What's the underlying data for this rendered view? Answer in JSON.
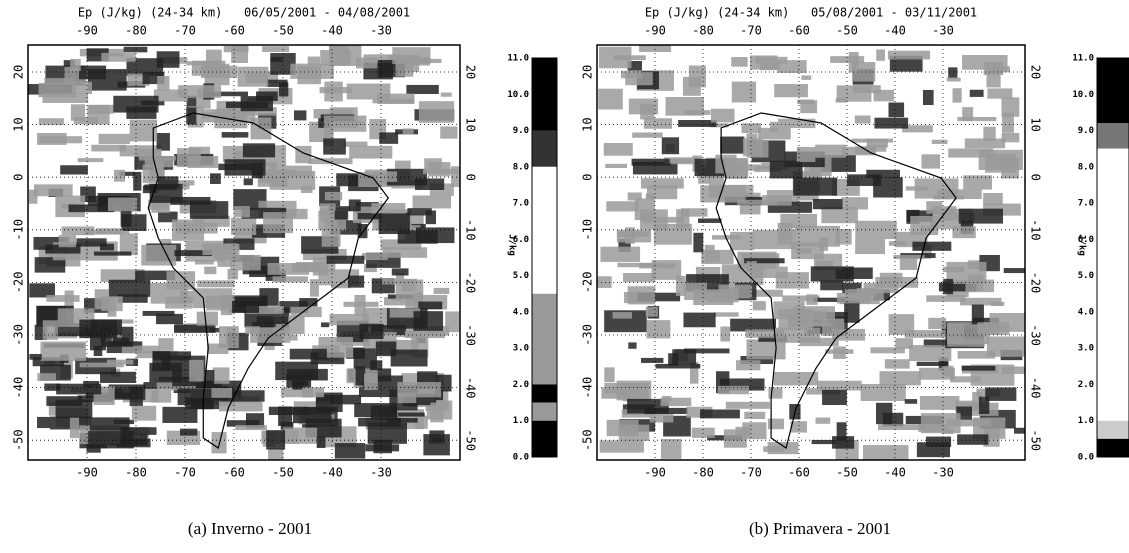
{
  "panels": [
    {
      "title": "Ep (J/kg) (24-34 km)   06/05/2001 - 04/08/2001",
      "lon_ticks": [
        "-90",
        "-80",
        "-70",
        "-60",
        "-50",
        "-40",
        "-30"
      ],
      "lat_ticks": [
        "20",
        "10",
        "0",
        "-10",
        "-20",
        "-30",
        "-40",
        "-50"
      ],
      "colorbar_ticks": [
        "0.0",
        "1.0",
        "2.0",
        "3.0",
        "4.0",
        "5.0",
        "6.0",
        "7.0",
        "8.0",
        "9.0",
        "10.0",
        "11.0"
      ],
      "colorbar_unit": "J/kg",
      "caption": "(a) Inverno - 2001"
    },
    {
      "title": "Ep (J/kg) (24-34 km)   05/08/2001 - 03/11/2001",
      "lon_ticks": [
        "-90",
        "-80",
        "-70",
        "-60",
        "-50",
        "-40",
        "-30"
      ],
      "lat_ticks": [
        "20",
        "10",
        "0",
        "-10",
        "-20",
        "-30",
        "-40",
        "-50"
      ],
      "colorbar_ticks": [
        "0.0",
        "1.0",
        "2.0",
        "3.0",
        "4.0",
        "5.0",
        "6.0",
        "7.0",
        "8.0",
        "9.0",
        "10.0",
        "11.0"
      ],
      "colorbar_unit": "J/kg",
      "caption": "(b) Primavera - 2001"
    }
  ]
}
